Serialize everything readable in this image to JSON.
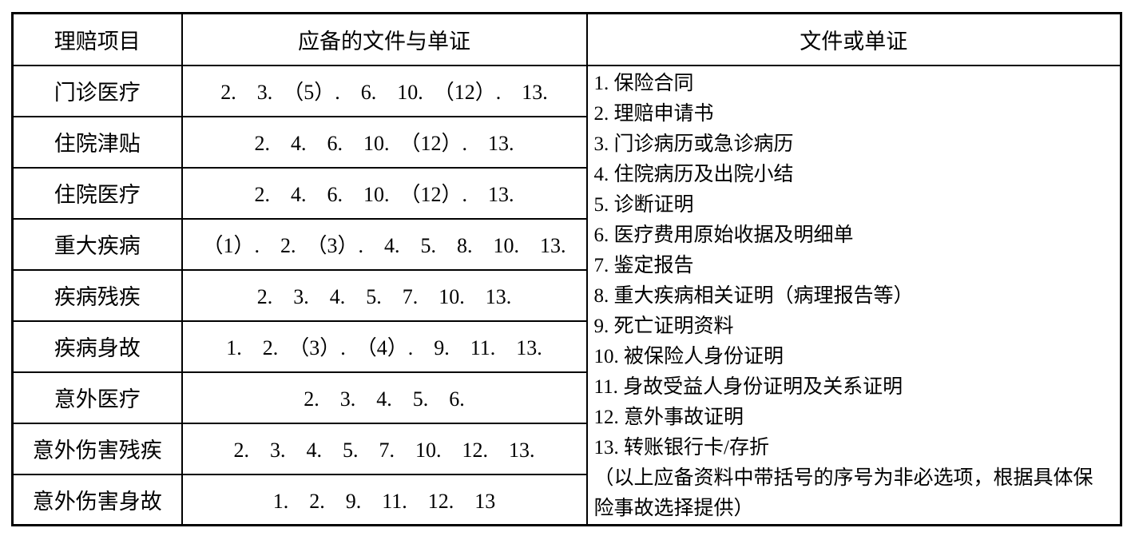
{
  "table": {
    "headers": [
      "理赔项目",
      "应备的文件与单证",
      "文件或单证"
    ],
    "rows": [
      {
        "item": "门诊医疗",
        "docs": "2.　3.　（5）.　6.　10.　（12）.　13."
      },
      {
        "item": "住院津贴",
        "docs": "2.　4.　6.　10.　（12）.　13."
      },
      {
        "item": "住院医疗",
        "docs": "2.　4.　6.　10.　（12）.　13."
      },
      {
        "item": "重大疾病",
        "docs": "（1）.　2.　（3）.　4.　5.　8.　10.　13."
      },
      {
        "item": "疾病残疾",
        "docs": "2.　3.　4.　5.　7.　10.　13."
      },
      {
        "item": "疾病身故",
        "docs": "1.　2.　（3）.　（4）.　9.　11.　13."
      },
      {
        "item": "意外医疗",
        "docs": "2.　3.　4.　5.　6."
      },
      {
        "item": "意外伤害残疾",
        "docs": "2.　3.　4.　5.　7.　10.　12.　13."
      },
      {
        "item": "意外伤害身故",
        "docs": "1.　2.　9.　11.　12.　13"
      }
    ],
    "document_list": [
      "1. 保险合同",
      "2. 理赔申请书",
      "3. 门诊病历或急诊病历",
      "4. 住院病历及出院小结",
      "5. 诊断证明",
      "6. 医疗费用原始收据及明细单",
      "7. 鉴定报告",
      "8. 重大疾病相关证明（病理报告等）",
      "9. 死亡证明资料",
      "10. 被保险人身份证明",
      "11. 身故受益人身份证明及关系证明",
      "12. 意外事故证明",
      "13. 转账银行卡/存折"
    ],
    "note": "（以上应备资料中带括号的序号为非必选项，根据具体保险事故选择提供）"
  },
  "colors": {
    "border": "#000000",
    "text": "#000000",
    "background": "#ffffff"
  }
}
